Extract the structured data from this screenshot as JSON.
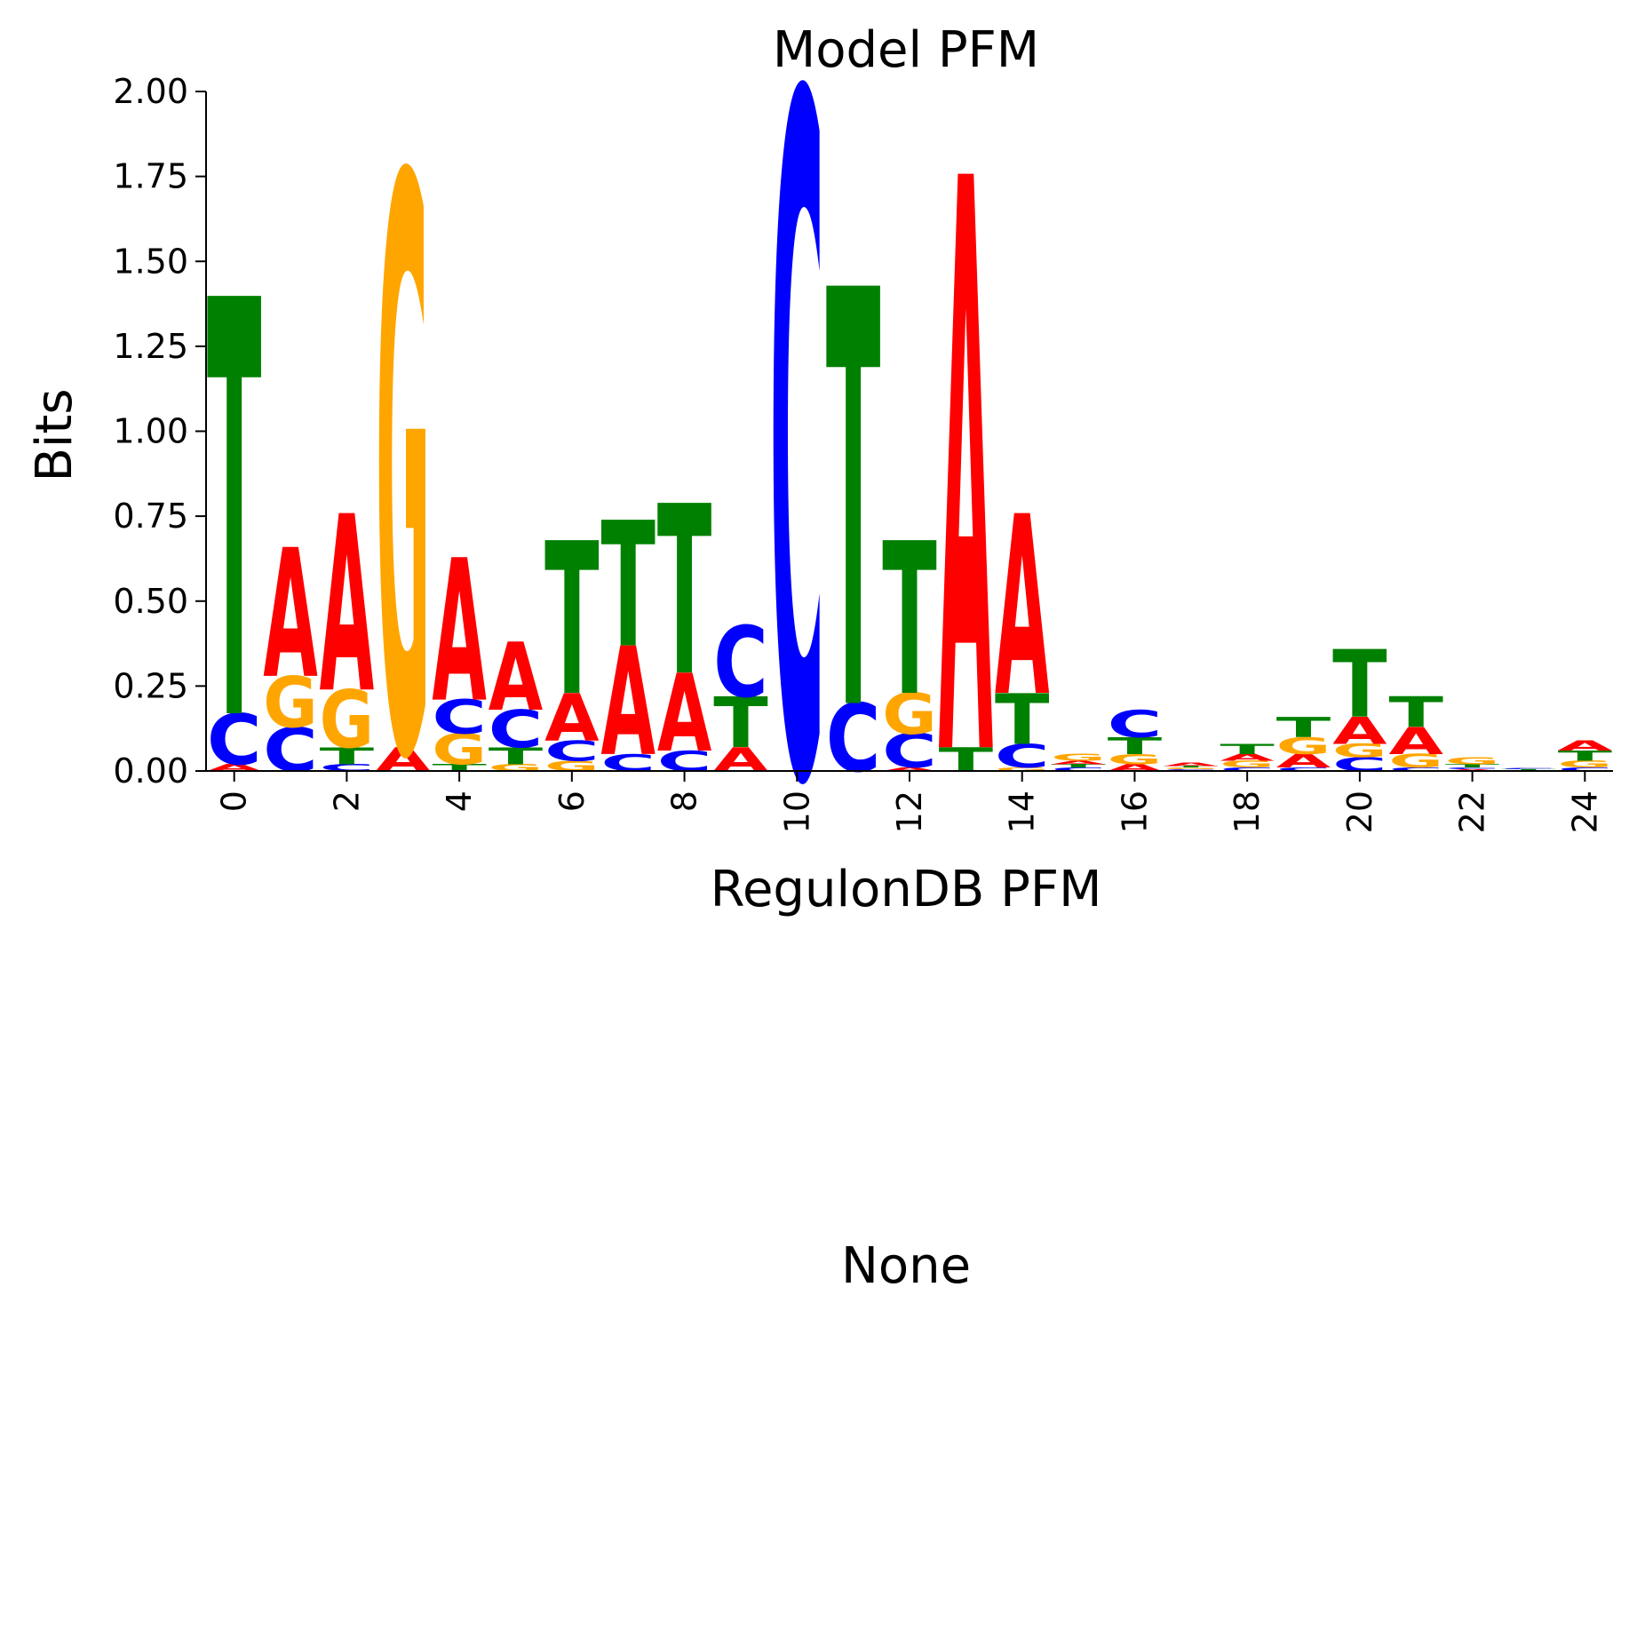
{
  "chart_data": [
    {
      "type": "sequence-logo",
      "title": "Model PFM",
      "xlabel": "RegulonDB PFM",
      "ylabel": "Bits",
      "ylim": [
        0,
        2
      ],
      "xlim": [
        -0.5,
        24.5
      ],
      "yticks": [
        "0.00",
        "0.25",
        "0.50",
        "0.75",
        "1.00",
        "1.25",
        "1.50",
        "1.75",
        "2.00"
      ],
      "xticks": [
        "0",
        "2",
        "4",
        "6",
        "8",
        "10",
        "12",
        "14",
        "16",
        "18",
        "20",
        "22",
        "24"
      ],
      "colors": {
        "A": "#ff0000",
        "C": "#0000ff",
        "G": "#ffa500",
        "T": "#008000"
      },
      "positions": [
        {
          "pos": 0,
          "stack": [
            {
              "base": "A",
              "h": 0.02
            },
            {
              "base": "C",
              "h": 0.15
            },
            {
              "base": "T",
              "h": 1.23
            }
          ]
        },
        {
          "pos": 1,
          "stack": [
            {
              "base": "C",
              "h": 0.13
            },
            {
              "base": "G",
              "h": 0.15
            },
            {
              "base": "A",
              "h": 0.38
            }
          ]
        },
        {
          "pos": 2,
          "stack": [
            {
              "base": "C",
              "h": 0.02
            },
            {
              "base": "T",
              "h": 0.05
            },
            {
              "base": "G",
              "h": 0.17
            },
            {
              "base": "A",
              "h": 0.52
            }
          ]
        },
        {
          "pos": 3,
          "stack": [
            {
              "base": "A",
              "h": 0.07
            },
            {
              "base": "G",
              "h": 1.69
            }
          ]
        },
        {
          "pos": 4,
          "stack": [
            {
              "base": "T",
              "h": 0.02
            },
            {
              "base": "G",
              "h": 0.09
            },
            {
              "base": "C",
              "h": 0.1
            },
            {
              "base": "A",
              "h": 0.42
            }
          ]
        },
        {
          "pos": 5,
          "stack": [
            {
              "base": "G",
              "h": 0.02
            },
            {
              "base": "T",
              "h": 0.05
            },
            {
              "base": "C",
              "h": 0.11
            },
            {
              "base": "A",
              "h": 0.2
            }
          ]
        },
        {
          "pos": 6,
          "stack": [
            {
              "base": "G",
              "h": 0.03
            },
            {
              "base": "C",
              "h": 0.06
            },
            {
              "base": "A",
              "h": 0.14
            },
            {
              "base": "T",
              "h": 0.45
            }
          ]
        },
        {
          "pos": 7,
          "stack": [
            {
              "base": "C",
              "h": 0.05
            },
            {
              "base": "A",
              "h": 0.32
            },
            {
              "base": "T",
              "h": 0.37
            }
          ]
        },
        {
          "pos": 8,
          "stack": [
            {
              "base": "C",
              "h": 0.06
            },
            {
              "base": "A",
              "h": 0.23
            },
            {
              "base": "T",
              "h": 0.5
            }
          ]
        },
        {
          "pos": 9,
          "stack": [
            {
              "base": "A",
              "h": 0.07
            },
            {
              "base": "T",
              "h": 0.15
            },
            {
              "base": "C",
              "h": 0.21
            }
          ]
        },
        {
          "pos": 10,
          "stack": [
            {
              "base": "C",
              "h": 2.0
            }
          ]
        },
        {
          "pos": 11,
          "stack": [
            {
              "base": "C",
              "h": 0.2
            },
            {
              "base": "T",
              "h": 1.23
            }
          ]
        },
        {
          "pos": 12,
          "stack": [
            {
              "base": "A",
              "h": 0.01
            },
            {
              "base": "C",
              "h": 0.1
            },
            {
              "base": "G",
              "h": 0.12
            },
            {
              "base": "T",
              "h": 0.45
            }
          ]
        },
        {
          "pos": 13,
          "stack": [
            {
              "base": "T",
              "h": 0.07
            },
            {
              "base": "A",
              "h": 1.69
            }
          ]
        },
        {
          "pos": 14,
          "stack": [
            {
              "base": "G",
              "h": 0.01
            },
            {
              "base": "C",
              "h": 0.07
            },
            {
              "base": "T",
              "h": 0.15
            },
            {
              "base": "A",
              "h": 0.53
            }
          ]
        },
        {
          "pos": 15,
          "stack": [
            {
              "base": "C",
              "h": 0.01
            },
            {
              "base": "T",
              "h": 0.01
            },
            {
              "base": "A",
              "h": 0.01
            },
            {
              "base": "G",
              "h": 0.02
            }
          ]
        },
        {
          "pos": 16,
          "stack": [
            {
              "base": "A",
              "h": 0.02
            },
            {
              "base": "G",
              "h": 0.03
            },
            {
              "base": "T",
              "h": 0.05
            },
            {
              "base": "C",
              "h": 0.08
            }
          ]
        },
        {
          "pos": 17,
          "stack": [
            {
              "base": "C",
              "h": 0.005
            },
            {
              "base": "G",
              "h": 0.005
            },
            {
              "base": "T",
              "h": 0.005
            },
            {
              "base": "A",
              "h": 0.01
            }
          ]
        },
        {
          "pos": 18,
          "stack": [
            {
              "base": "C",
              "h": 0.01
            },
            {
              "base": "G",
              "h": 0.02
            },
            {
              "base": "A",
              "h": 0.02
            },
            {
              "base": "T",
              "h": 0.03
            }
          ]
        },
        {
          "pos": 19,
          "stack": [
            {
              "base": "C",
              "h": 0.01
            },
            {
              "base": "A",
              "h": 0.04
            },
            {
              "base": "G",
              "h": 0.05
            },
            {
              "base": "T",
              "h": 0.06
            }
          ]
        },
        {
          "pos": 20,
          "stack": [
            {
              "base": "C",
              "h": 0.04
            },
            {
              "base": "G",
              "h": 0.04
            },
            {
              "base": "A",
              "h": 0.08
            },
            {
              "base": "T",
              "h": 0.2
            }
          ]
        },
        {
          "pos": 21,
          "stack": [
            {
              "base": "C",
              "h": 0.01
            },
            {
              "base": "G",
              "h": 0.04
            },
            {
              "base": "A",
              "h": 0.08
            },
            {
              "base": "T",
              "h": 0.09
            }
          ]
        },
        {
          "pos": 22,
          "stack": [
            {
              "base": "A",
              "h": 0.005
            },
            {
              "base": "C",
              "h": 0.005
            },
            {
              "base": "T",
              "h": 0.01
            },
            {
              "base": "G",
              "h": 0.02
            }
          ]
        },
        {
          "pos": 23,
          "stack": [
            {
              "base": "G",
              "h": 0.002
            },
            {
              "base": "T",
              "h": 0.003
            },
            {
              "base": "C",
              "h": 0.004
            }
          ]
        },
        {
          "pos": 24,
          "stack": [
            {
              "base": "C",
              "h": 0.01
            },
            {
              "base": "G",
              "h": 0.02
            },
            {
              "base": "T",
              "h": 0.03
            },
            {
              "base": "A",
              "h": 0.03
            }
          ]
        }
      ]
    },
    {
      "type": "empty",
      "title": "None"
    }
  ]
}
